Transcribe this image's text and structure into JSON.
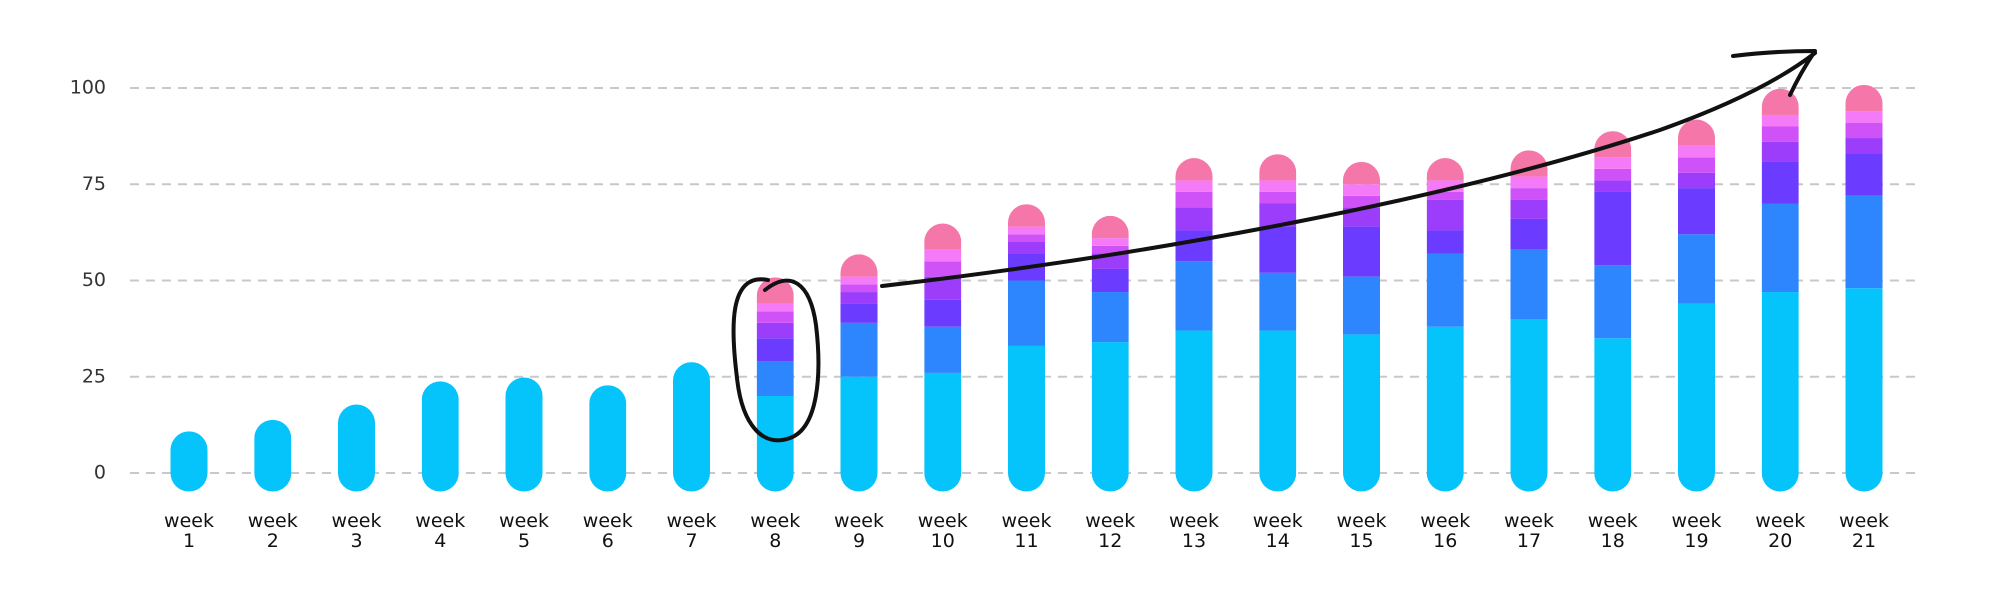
{
  "chart_data": {
    "type": "bar",
    "stacked": true,
    "rounded_bars": true,
    "categories": [
      [
        "week",
        "1"
      ],
      [
        "week",
        "2"
      ],
      [
        "week",
        "3"
      ],
      [
        "week",
        "4"
      ],
      [
        "week",
        "5"
      ],
      [
        "week",
        "6"
      ],
      [
        "week",
        "7"
      ],
      [
        "week",
        "8"
      ],
      [
        "week",
        "9"
      ],
      [
        "week",
        "10"
      ],
      [
        "week",
        "11"
      ],
      [
        "week",
        "12"
      ],
      [
        "week",
        "13"
      ],
      [
        "week",
        "14"
      ],
      [
        "week",
        "15"
      ],
      [
        "week",
        "16"
      ],
      [
        "week",
        "17"
      ],
      [
        "week",
        "18"
      ],
      [
        "week",
        "19"
      ],
      [
        "week",
        "20"
      ],
      [
        "week",
        "21"
      ]
    ],
    "series": [
      {
        "color": "#05C3FB",
        "values": [
          6,
          9,
          13,
          19,
          20,
          18,
          24,
          20,
          25,
          26,
          33,
          34,
          37,
          37,
          36,
          38,
          40,
          35,
          44,
          47,
          48
        ]
      },
      {
        "color": "#2E86FF",
        "values": [
          0,
          0,
          0,
          0,
          0,
          0,
          0,
          9,
          14,
          12,
          17,
          13,
          18,
          15,
          15,
          19,
          18,
          19,
          18,
          23,
          24
        ]
      },
      {
        "color": "#6B3CFF",
        "values": [
          0,
          0,
          0,
          0,
          0,
          0,
          0,
          6,
          5,
          7,
          7,
          6,
          8,
          12,
          13,
          6,
          8,
          19,
          12,
          11,
          11
        ]
      },
      {
        "color": "#9B3DFB",
        "values": [
          0,
          0,
          0,
          0,
          0,
          0,
          0,
          4,
          3,
          6,
          3,
          4,
          6,
          6,
          5,
          8,
          5,
          3,
          4,
          5,
          4
        ]
      },
      {
        "color": "#CF52F9",
        "values": [
          0,
          0,
          0,
          0,
          0,
          0,
          0,
          3,
          2,
          4,
          2,
          2,
          4,
          3,
          3,
          2,
          3,
          3,
          4,
          4,
          4
        ]
      },
      {
        "color": "#F57AF8",
        "values": [
          0,
          0,
          0,
          0,
          0,
          0,
          0,
          2,
          2,
          3,
          2,
          2,
          3,
          3,
          3,
          3,
          3,
          3,
          3,
          3,
          3
        ]
      },
      {
        "color": "#F576A8",
        "values": [
          0,
          0,
          0,
          0,
          0,
          0,
          0,
          2,
          1,
          2,
          1,
          1,
          1,
          2,
          1,
          1,
          2,
          2,
          2,
          2,
          2
        ]
      }
    ],
    "yticks": [
      0,
      25,
      50,
      75,
      100
    ],
    "ylim": [
      0,
      110
    ],
    "grid": true,
    "annotations": [
      "circle around week 8",
      "arrow from week 9 rising to above week 20"
    ]
  }
}
